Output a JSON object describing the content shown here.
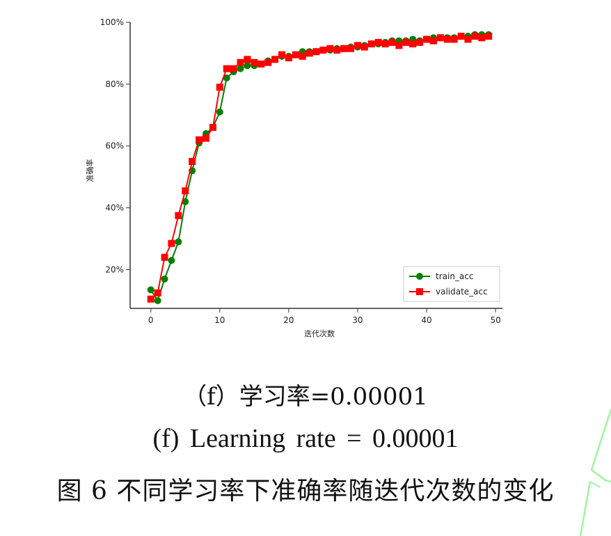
{
  "chart_data": {
    "type": "line",
    "title": "",
    "xlabel": "迭代次数",
    "ylabel": "准确率",
    "xlim": [
      -3,
      51
    ],
    "ylim": [
      7.5,
      100
    ],
    "x_ticks": [
      0,
      10,
      20,
      30,
      40,
      50
    ],
    "y_ticks": [
      20,
      40,
      60,
      80,
      100
    ],
    "y_tick_labels": [
      "20%",
      "40%",
      "60%",
      "80%",
      "100%"
    ],
    "grid": false,
    "legend_position": "lower-right",
    "x": [
      0,
      1,
      2,
      3,
      4,
      5,
      6,
      7,
      8,
      9,
      10,
      11,
      12,
      13,
      14,
      15,
      16,
      17,
      18,
      19,
      20,
      21,
      22,
      23,
      24,
      25,
      26,
      27,
      28,
      29,
      30,
      31,
      32,
      33,
      34,
      35,
      36,
      37,
      38,
      39,
      40,
      41,
      42,
      43,
      44,
      45,
      46,
      47,
      48,
      49
    ],
    "series": [
      {
        "name": "train_acc",
        "color": "#008000",
        "marker": "circle",
        "values": [
          13.5,
          10,
          17,
          23,
          29,
          42,
          52,
          61,
          64,
          66,
          71,
          82,
          84,
          85,
          86,
          86,
          86.5,
          87.5,
          88,
          89,
          89,
          89.5,
          90.5,
          90.5,
          90.5,
          91,
          91,
          91.5,
          91.5,
          92,
          92,
          92.5,
          93,
          93,
          93.5,
          94,
          94,
          94,
          94.5,
          94,
          94.5,
          95,
          95,
          95,
          95,
          95.5,
          95.5,
          96,
          96,
          96
        ]
      },
      {
        "name": "validate_acc",
        "color": "#ff0000",
        "marker": "square",
        "values": [
          10.5,
          12.5,
          24,
          28.5,
          37.5,
          45.5,
          55,
          62,
          62.5,
          66,
          79,
          85,
          85,
          87,
          88,
          87,
          86.5,
          87,
          88,
          89.5,
          88.5,
          89.5,
          89,
          90,
          90.5,
          91,
          91.5,
          91,
          91.5,
          91.5,
          92.5,
          92,
          93,
          93.5,
          93,
          93.5,
          92.5,
          93.5,
          93,
          93.5,
          94.5,
          94,
          95,
          94.5,
          94.5,
          95.5,
          94.5,
          95.5,
          95,
          95.5
        ]
      }
    ]
  },
  "captions": {
    "zh": "（f）学习率=0.00001",
    "en": "(f) Learning  rate  =  0.00001",
    "figure": "图 6  不同学习率下准确率随迭代次数的变化"
  },
  "colors": {
    "axis": "#333333",
    "watermark": "#9ef59e"
  }
}
